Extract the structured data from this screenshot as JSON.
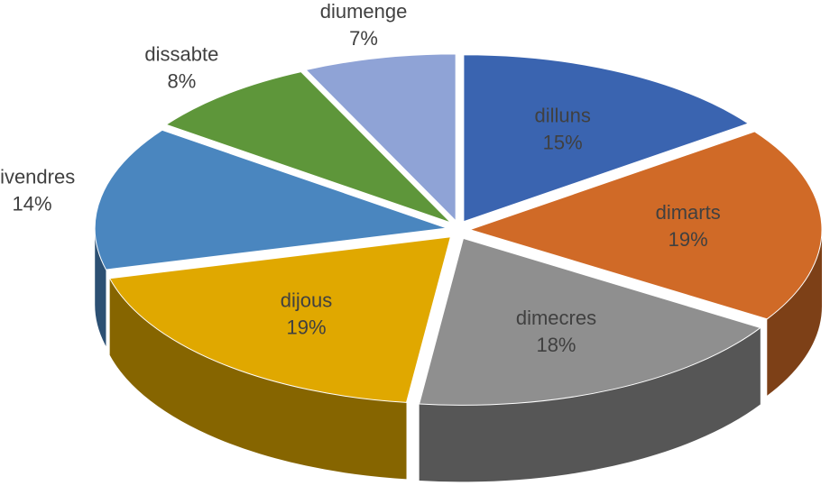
{
  "chart_data": {
    "type": "pie",
    "categories": [
      "dilluns",
      "dimarts",
      "dimecres",
      "dijous",
      "divendres",
      "dissabte",
      "diumenge"
    ],
    "values": [
      15,
      19,
      18,
      19,
      14,
      8,
      7
    ],
    "value_labels": [
      "15%",
      "19%",
      "18%",
      "19%",
      "14%",
      "8%",
      "7%"
    ],
    "colors": [
      "#3a64b0",
      "#d06a27",
      "#8f8f8f",
      "#e0a800",
      "#4a86bf",
      "#5e963a",
      "#8fa3d6"
    ]
  }
}
